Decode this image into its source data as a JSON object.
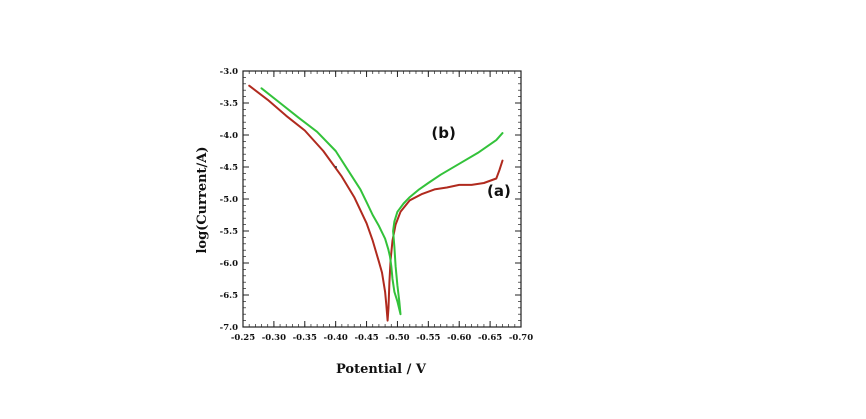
{
  "chart_data": {
    "type": "line",
    "title": "",
    "xlabel": "Potential / V",
    "ylabel": "log(Current/A)",
    "xlim": [
      -0.25,
      -0.7
    ],
    "ylim": [
      -7.0,
      -3.0
    ],
    "x_reversed": true,
    "grid": false,
    "x_ticks": [
      -0.25,
      -0.3,
      -0.35,
      -0.4,
      -0.45,
      -0.5,
      -0.55,
      -0.6,
      -0.65,
      -0.7
    ],
    "x_tick_labels": [
      "-0.25",
      "-0.30",
      "-0.35",
      "-0.40",
      "-0.45",
      "-0.50",
      "-0.55",
      "-0.60",
      "-0.65",
      "-0.70"
    ],
    "y_ticks": [
      -3.0,
      -3.5,
      -4.0,
      -4.5,
      -5.0,
      -5.5,
      -6.0,
      -6.5,
      -7.0
    ],
    "y_tick_labels": [
      "-3.0",
      "-3.5",
      "-4.0",
      "-4.5",
      "-5.0",
      "-5.5",
      "-6.0",
      "-6.5",
      "-7.0"
    ],
    "series": [
      {
        "label": "(a)",
        "label_at": [
          -0.645,
          -4.95
        ],
        "color": "#b02a1e",
        "x": [
          -0.26,
          -0.29,
          -0.32,
          -0.35,
          -0.38,
          -0.41,
          -0.43,
          -0.45,
          -0.46,
          -0.47,
          -0.475,
          -0.48,
          -0.482,
          -0.484,
          -0.4855,
          -0.487,
          -0.489,
          -0.492,
          -0.497,
          -0.505,
          -0.52,
          -0.54,
          -0.56,
          -0.58,
          -0.6,
          -0.62,
          -0.64,
          -0.66,
          -0.665,
          -0.67
        ],
        "y": [
          -3.23,
          -3.45,
          -3.7,
          -3.93,
          -4.25,
          -4.65,
          -4.97,
          -5.38,
          -5.65,
          -5.98,
          -6.15,
          -6.45,
          -6.65,
          -6.9,
          -6.7,
          -6.3,
          -5.95,
          -5.65,
          -5.4,
          -5.2,
          -5.02,
          -4.92,
          -4.85,
          -4.82,
          -4.78,
          -4.78,
          -4.75,
          -4.68,
          -4.55,
          -4.4
        ]
      },
      {
        "label": "(b)",
        "label_at": [
          -0.555,
          -4.05
        ],
        "color": "#33c23a",
        "x": [
          -0.28,
          -0.31,
          -0.34,
          -0.37,
          -0.4,
          -0.42,
          -0.44,
          -0.45,
          -0.46,
          -0.47,
          -0.48,
          -0.485,
          -0.488,
          -0.49,
          -0.492,
          -0.495,
          -0.5,
          -0.505,
          -0.503,
          -0.5,
          -0.497,
          -0.495,
          -0.493,
          -0.495,
          -0.5,
          -0.51,
          -0.52,
          -0.535,
          -0.55,
          -0.57,
          -0.6,
          -0.63,
          -0.66,
          -0.67
        ],
        "y": [
          -3.27,
          -3.5,
          -3.73,
          -3.95,
          -4.25,
          -4.55,
          -4.85,
          -5.05,
          -5.25,
          -5.42,
          -5.62,
          -5.78,
          -5.9,
          -6.05,
          -6.25,
          -6.45,
          -6.6,
          -6.8,
          -6.6,
          -6.35,
          -6.05,
          -5.75,
          -5.5,
          -5.35,
          -5.2,
          -5.07,
          -4.97,
          -4.85,
          -4.75,
          -4.62,
          -4.45,
          -4.28,
          -4.08,
          -3.97
        ]
      }
    ]
  }
}
